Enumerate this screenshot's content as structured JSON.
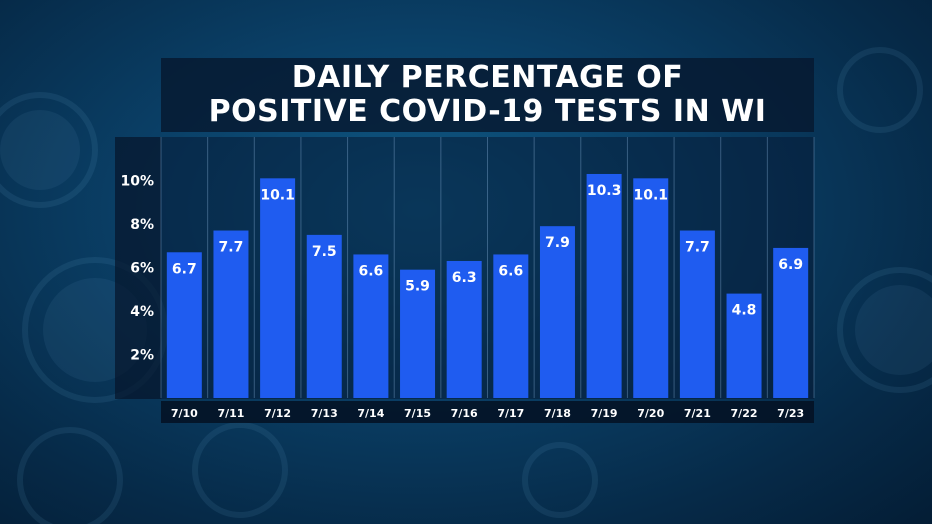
{
  "chart_data": {
    "type": "bar",
    "title_lines": [
      "DAILY PERCENTAGE OF",
      "POSITIVE COVID-19 TESTS IN WI"
    ],
    "categories": [
      "7/10",
      "7/11",
      "7/12",
      "7/13",
      "7/14",
      "7/15",
      "7/16",
      "7/17",
      "7/18",
      "7/19",
      "7/20",
      "7/21",
      "7/22",
      "7/23"
    ],
    "values": [
      6.7,
      7.7,
      10.1,
      7.5,
      6.6,
      5.9,
      6.3,
      6.6,
      7.9,
      10.3,
      10.1,
      7.7,
      4.8,
      6.9
    ],
    "value_labels": [
      "6.7",
      "7.7",
      "10.1",
      "7.5",
      "6.6",
      "5.9",
      "6.3",
      "6.6",
      "7.9",
      "10.3",
      "10.1",
      "7.7",
      "4.8",
      "6.9"
    ],
    "y_ticks": [
      2,
      4,
      6,
      8,
      10
    ],
    "y_tick_labels": [
      "2%",
      "4%",
      "6%",
      "8%",
      "10%"
    ],
    "ylim": [
      0,
      12
    ],
    "grid": true,
    "bar_color": "#1f5cf0",
    "xlabel": "",
    "ylabel": ""
  }
}
